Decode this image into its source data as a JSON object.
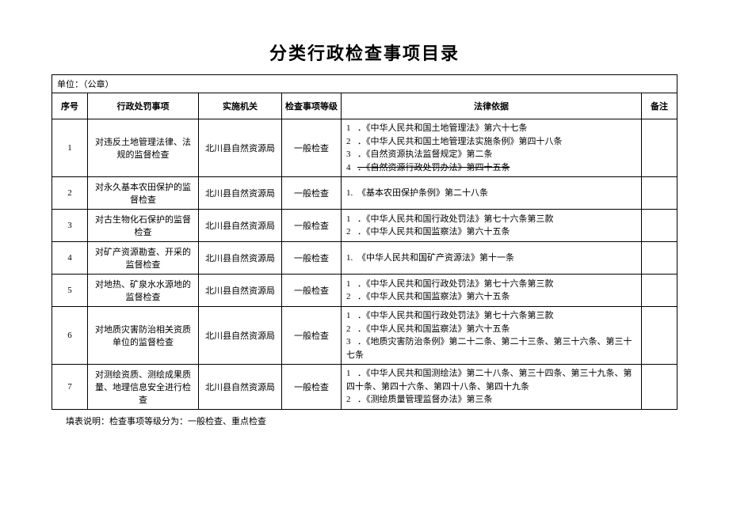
{
  "title": "分类行政检查事项目录",
  "unit_label": "单位：（公章）",
  "columns": {
    "seq": "序号",
    "item": "行政处罚事项",
    "agency": "实施机关",
    "level": "检查事项等级",
    "basis": "法律依据",
    "remark": "备注"
  },
  "rows": [
    {
      "seq": "1",
      "item": "对违反土地管理法律、法规的监督检查",
      "agency": "北川县自然资源局",
      "level": "一般检查",
      "basis": [
        {
          "n": "1",
          "t": "．《中华人民共和国土地管理法》第六十七条"
        },
        {
          "n": "2",
          "t": "．《中华人民共和国土地管理法实施条例》第四十八条"
        },
        {
          "n": "3",
          "t": "．《自然资源执法监督规定》第二条"
        },
        {
          "n": "4",
          "t": "．《自然资源行政处罚办法》第四十五条",
          "strike": true
        }
      ],
      "remark": ""
    },
    {
      "seq": "2",
      "item": "对永久基本农田保护的监督检查",
      "agency": "北川县自然资源局",
      "level": "一般检查",
      "basis": [
        {
          "n": "1.",
          "t": "《基本农田保护条例》第二十八条"
        }
      ],
      "remark": ""
    },
    {
      "seq": "3",
      "item": "对古生物化石保护的监督检查",
      "agency": "北川县自然资源局",
      "level": "一般检查",
      "basis": [
        {
          "n": "1",
          "t": "．《中华人民共和国行政处罚法》第七十六条第三款"
        },
        {
          "n": "2",
          "t": "．《中华人民共和国监察法》第六十五条"
        }
      ],
      "remark": ""
    },
    {
      "seq": "4",
      "item": "对矿产资源勘查、开采的监督检查",
      "agency": "北川县自然资源局",
      "level": "一般检查",
      "basis": [
        {
          "n": "1.",
          "t": "《中华人民共和国矿产资源法》第十一条"
        }
      ],
      "remark": ""
    },
    {
      "seq": "5",
      "item": "对地热、矿泉水水源地的监督检查",
      "agency": "北川县自然资源局",
      "level": "一般检查",
      "basis": [
        {
          "n": "1",
          "t": "．《中华人民共和国行政处罚法》第七十六条第三款"
        },
        {
          "n": "2",
          "t": "．《中华人民共和国监察法》第六十五条"
        }
      ],
      "remark": ""
    },
    {
      "seq": "6",
      "item": "对地质灾害防治相关资质单位的监督检查",
      "agency": "北川县自然资源局",
      "level": "一般检查",
      "basis": [
        {
          "n": "1",
          "t": "．《中华人民共和国行政处罚法》第七十六条第三款"
        },
        {
          "n": "2",
          "t": "．《中华人民共和国监察法》第六十五条"
        },
        {
          "n": "3",
          "t": "．《地质灾害防治条例》第二十二条、第二十三条、第三十六条、第三十七条"
        }
      ],
      "remark": ""
    },
    {
      "seq": "7",
      "item": "对测绘资质、测绘成果质量、地理信息安全进行检查",
      "agency": "北川县自然资源局",
      "level": "一般检查",
      "basis": [
        {
          "n": "1",
          "t": "．《中华人民共和国测绘法》第二十八条、第三十四条、第三十九条、第四十条、第四十六条、第四十八条、第四十九条"
        },
        {
          "n": "2",
          "t": "．《测绘质量管理监督办法》第三条"
        }
      ],
      "remark": ""
    }
  ],
  "footer_note": "填表说明：检查事项等级分为：一般检查、重点检查"
}
